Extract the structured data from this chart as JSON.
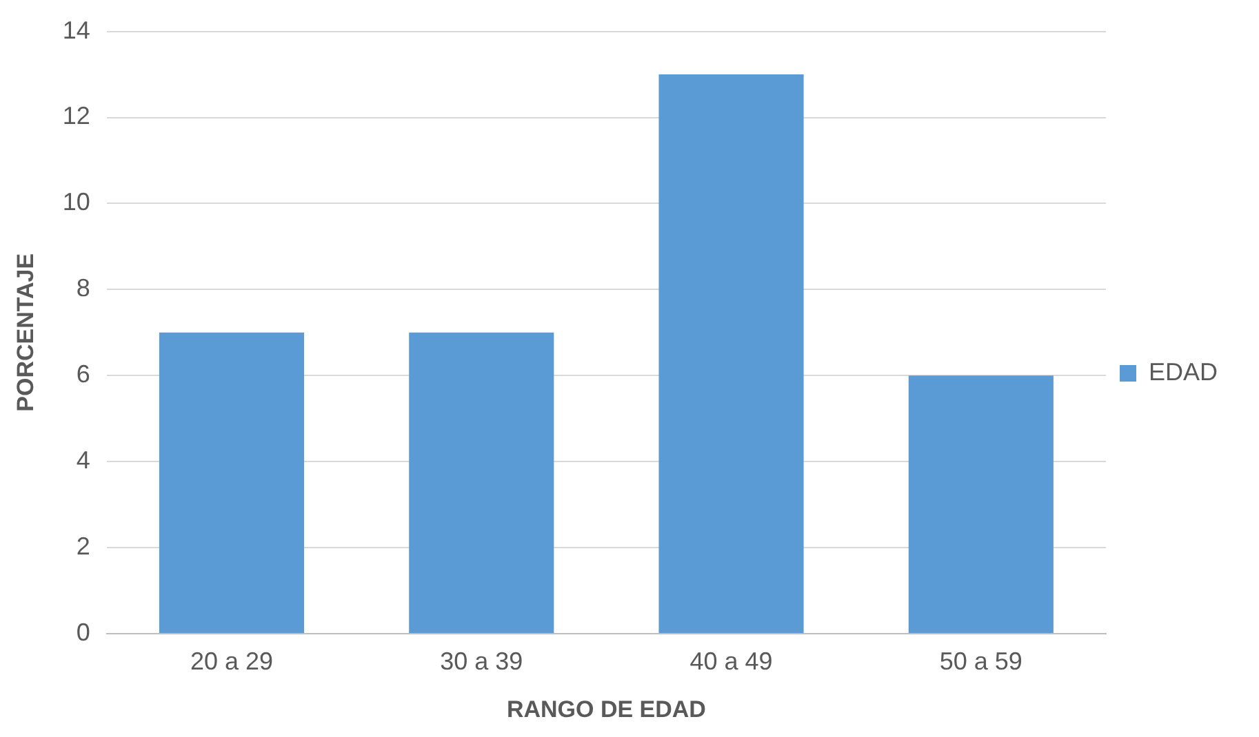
{
  "chart_data": {
    "type": "bar",
    "xlabel": "RANGO DE EDAD",
    "ylabel": "PORCENTAJE",
    "categories": [
      "20 a 29",
      "30 a 39",
      "40 a 49",
      "50 a 59"
    ],
    "series": [
      {
        "name": "EDAD",
        "color": "#5b9bd5",
        "values": [
          7,
          7,
          13,
          6
        ]
      }
    ],
    "ylim": [
      0,
      14
    ],
    "yticks": [
      0,
      2,
      4,
      6,
      8,
      10,
      12,
      14
    ],
    "grid": "y",
    "legend": "right"
  }
}
